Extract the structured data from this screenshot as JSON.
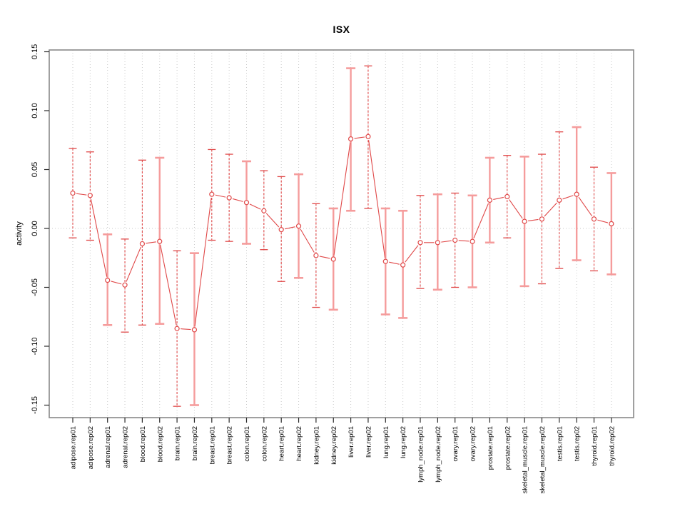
{
  "figure": {
    "background": "#ffffff"
  },
  "chart_data": {
    "type": "line",
    "subtype": "points-with-error-bars",
    "title": "ISX",
    "xlabel": "",
    "ylabel": "activity",
    "ylim": [
      -0.16,
      0.151
    ],
    "ytick_values": [
      0.15,
      0.1,
      0.05,
      0.0,
      -0.05,
      -0.1,
      -0.15
    ],
    "ytick_labels": [
      "0.15",
      "0.10",
      "0.05",
      "0.00",
      "-0.05",
      "-0.10",
      "-0.15"
    ],
    "grid": "vertical dotted gridline at every category; horizontal dotted line at y=0 only",
    "legend": "none",
    "marker": "open-circle",
    "points": [
      {
        "label": "adipose.rep01",
        "value": 0.03,
        "lo": -0.008,
        "hi": 0.068,
        "style": "dashed"
      },
      {
        "label": "adipose.rep02",
        "value": 0.028,
        "lo": -0.01,
        "hi": 0.065,
        "style": "dashed"
      },
      {
        "label": "adrenal.rep01",
        "value": -0.044,
        "lo": -0.082,
        "hi": -0.005,
        "style": "solid"
      },
      {
        "label": "adrenal.rep02",
        "value": -0.048,
        "lo": -0.088,
        "hi": -0.009,
        "style": "dashed"
      },
      {
        "label": "blood.rep01",
        "value": -0.013,
        "lo": -0.082,
        "hi": 0.058,
        "style": "dashed"
      },
      {
        "label": "blood.rep02",
        "value": -0.011,
        "lo": -0.081,
        "hi": 0.06,
        "style": "solid"
      },
      {
        "label": "brain.rep01",
        "value": -0.085,
        "lo": -0.151,
        "hi": -0.019,
        "style": "dashed"
      },
      {
        "label": "brain.rep02",
        "value": -0.086,
        "lo": -0.15,
        "hi": -0.021,
        "style": "solid"
      },
      {
        "label": "breast.rep01",
        "value": 0.029,
        "lo": -0.01,
        "hi": 0.067,
        "style": "dashed"
      },
      {
        "label": "breast.rep02",
        "value": 0.026,
        "lo": -0.011,
        "hi": 0.063,
        "style": "dashed"
      },
      {
        "label": "colon.rep01",
        "value": 0.022,
        "lo": -0.013,
        "hi": 0.057,
        "style": "solid"
      },
      {
        "label": "colon.rep02",
        "value": 0.015,
        "lo": -0.018,
        "hi": 0.049,
        "style": "dashed"
      },
      {
        "label": "heart.rep01",
        "value": -0.001,
        "lo": -0.045,
        "hi": 0.044,
        "style": "dashed"
      },
      {
        "label": "heart.rep02",
        "value": 0.002,
        "lo": -0.042,
        "hi": 0.046,
        "style": "solid"
      },
      {
        "label": "kidney.rep01",
        "value": -0.023,
        "lo": -0.067,
        "hi": 0.021,
        "style": "dashed"
      },
      {
        "label": "kidney.rep02",
        "value": -0.026,
        "lo": -0.069,
        "hi": 0.017,
        "style": "solid"
      },
      {
        "label": "liver.rep01",
        "value": 0.076,
        "lo": 0.015,
        "hi": 0.136,
        "style": "solid"
      },
      {
        "label": "liver.rep02",
        "value": 0.078,
        "lo": 0.017,
        "hi": 0.138,
        "style": "dashed"
      },
      {
        "label": "lung.rep01",
        "value": -0.028,
        "lo": -0.073,
        "hi": 0.017,
        "style": "solid"
      },
      {
        "label": "lung.rep02",
        "value": -0.031,
        "lo": -0.076,
        "hi": 0.015,
        "style": "solid"
      },
      {
        "label": "lymph_node.rep01",
        "value": -0.012,
        "lo": -0.051,
        "hi": 0.028,
        "style": "dashed"
      },
      {
        "label": "lymph_node.rep02",
        "value": -0.012,
        "lo": -0.052,
        "hi": 0.029,
        "style": "solid"
      },
      {
        "label": "ovary.rep01",
        "value": -0.01,
        "lo": -0.05,
        "hi": 0.03,
        "style": "dashed"
      },
      {
        "label": "ovary.rep02",
        "value": -0.011,
        "lo": -0.05,
        "hi": 0.028,
        "style": "solid"
      },
      {
        "label": "prostate.rep01",
        "value": 0.024,
        "lo": -0.012,
        "hi": 0.06,
        "style": "solid"
      },
      {
        "label": "prostate.rep02",
        "value": 0.027,
        "lo": -0.008,
        "hi": 0.062,
        "style": "dashed"
      },
      {
        "label": "skeletal_muscle.rep01",
        "value": 0.006,
        "lo": -0.049,
        "hi": 0.061,
        "style": "solid"
      },
      {
        "label": "skeletal_muscle.rep02",
        "value": 0.008,
        "lo": -0.047,
        "hi": 0.063,
        "style": "dashed"
      },
      {
        "label": "testis.rep01",
        "value": 0.024,
        "lo": -0.034,
        "hi": 0.082,
        "style": "dashed"
      },
      {
        "label": "testis.rep02",
        "value": 0.029,
        "lo": -0.027,
        "hi": 0.086,
        "style": "solid"
      },
      {
        "label": "thyroid.rep01",
        "value": 0.008,
        "lo": -0.036,
        "hi": 0.052,
        "style": "dashed"
      },
      {
        "label": "thyroid.rep02",
        "value": 0.004,
        "lo": -0.039,
        "hi": 0.047,
        "style": "solid"
      }
    ],
    "colors": {
      "line_red": "#e04848",
      "error_bar_solid_pink": "#f59c9c",
      "grid_gray": "#c9c9c9",
      "box_gray": "#898989",
      "tick_black": "#2a2a2a",
      "label_black": "#000000"
    }
  }
}
